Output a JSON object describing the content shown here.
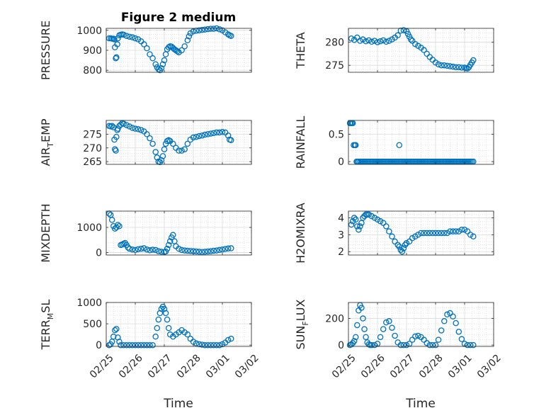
{
  "figure": {
    "title": "Figure 2 medium",
    "xlabel": "Time"
  },
  "chart_data": [
    {
      "type": "scatter",
      "ylabel": "PRESSURE",
      "ylabel_sub": "",
      "ylim": [
        790,
        1010
      ],
      "yticks": [
        800,
        900,
        1000
      ],
      "xlim": [
        0,
        5
      ],
      "xticks": [
        0,
        1,
        2,
        3,
        4,
        5
      ],
      "xticklabels": [],
      "grid": true,
      "x": [
        0.1,
        0.16,
        0.2,
        0.25,
        0.28,
        0.3,
        0.33,
        0.35,
        0.38,
        0.4,
        0.45,
        0.5,
        0.55,
        0.6,
        0.7,
        0.8,
        0.9,
        1.0,
        1.1,
        1.2,
        1.3,
        1.4,
        1.5,
        1.6,
        1.7,
        1.75,
        1.8,
        1.85,
        1.9,
        1.95,
        2.0,
        2.05,
        2.1,
        2.15,
        2.2,
        2.25,
        2.3,
        2.35,
        2.4,
        2.45,
        2.5,
        2.6,
        2.7,
        2.8,
        2.85,
        2.9,
        3.0,
        3.1,
        3.2,
        3.3,
        3.4,
        3.5,
        3.6,
        3.7,
        3.8,
        3.9,
        4.0,
        4.1,
        4.2,
        4.25,
        4.3
      ],
      "y": [
        960,
        960,
        958,
        958,
        955,
        915,
        860,
        865,
        930,
        960,
        975,
        978,
        980,
        978,
        972,
        968,
        965,
        960,
        955,
        945,
        930,
        910,
        880,
        860,
        830,
        815,
        805,
        800,
        810,
        830,
        850,
        880,
        905,
        915,
        920,
        918,
        912,
        905,
        900,
        895,
        890,
        900,
        920,
        950,
        970,
        985,
        995,
        998,
        1000,
        1002,
        1004,
        1006,
        1008,
        1008,
        1010,
        1005,
        1000,
        990,
        980,
        975,
        972
      ]
    },
    {
      "type": "scatter",
      "ylabel": "THETA",
      "ylabel_sub": "",
      "ylim": [
        273.5,
        283
      ],
      "yticks": [
        275,
        280
      ],
      "xlim": [
        0,
        5
      ],
      "xticks": [
        0,
        1,
        2,
        3,
        4,
        5
      ],
      "xticklabels": [],
      "grid": true,
      "x": [
        0.1,
        0.2,
        0.3,
        0.4,
        0.5,
        0.6,
        0.7,
        0.8,
        0.9,
        1.0,
        1.1,
        1.2,
        1.3,
        1.4,
        1.5,
        1.6,
        1.7,
        1.8,
        1.9,
        2.0,
        2.05,
        2.1,
        2.15,
        2.2,
        2.3,
        2.4,
        2.5,
        2.6,
        2.7,
        2.8,
        2.9,
        3.0,
        3.1,
        3.2,
        3.3,
        3.4,
        3.5,
        3.6,
        3.7,
        3.8,
        3.9,
        4.0,
        4.05,
        4.1,
        4.15,
        4.2,
        4.25,
        4.3
      ],
      "y": [
        280.8,
        280.5,
        281,
        280.3,
        280.6,
        280.2,
        280.4,
        280.1,
        280.3,
        280.0,
        280.2,
        280.4,
        280.1,
        280.3,
        280.6,
        281,
        281.5,
        282.5,
        282.6,
        282.4,
        281.8,
        281.2,
        280.6,
        280.3,
        279.6,
        279.2,
        278.8,
        278.3,
        277.5,
        276.8,
        276.2,
        275.6,
        275.2,
        275,
        275,
        274.9,
        274.8,
        274.7,
        274.6,
        274.6,
        274.5,
        274.5,
        274.4,
        274.3,
        274.6,
        275.1,
        275.6,
        276.1
      ]
    },
    {
      "type": "scatter",
      "ylabel": "AIR",
      "ylabel_sub": "T",
      "ylabel_after": "EMP",
      "ylim": [
        264,
        280
      ],
      "yticks": [
        265,
        270,
        275
      ],
      "xlim": [
        0,
        5
      ],
      "xticks": [
        0,
        1,
        2,
        3,
        4,
        5
      ],
      "xticklabels": [],
      "grid": true,
      "x": [
        0.1,
        0.15,
        0.2,
        0.25,
        0.28,
        0.3,
        0.33,
        0.35,
        0.38,
        0.4,
        0.45,
        0.5,
        0.55,
        0.6,
        0.7,
        0.8,
        0.9,
        1.0,
        1.1,
        1.2,
        1.3,
        1.4,
        1.5,
        1.6,
        1.7,
        1.75,
        1.8,
        1.85,
        1.9,
        1.95,
        2.0,
        2.05,
        2.1,
        2.15,
        2.2,
        2.3,
        2.4,
        2.5,
        2.6,
        2.7,
        2.8,
        2.9,
        3.0,
        3.1,
        3.2,
        3.3,
        3.4,
        3.5,
        3.6,
        3.7,
        3.8,
        3.9,
        4.0,
        4.1,
        4.2,
        4.25,
        4.3
      ],
      "y": [
        278,
        277.8,
        278,
        277.5,
        273,
        269.5,
        269,
        274,
        276.5,
        277,
        278,
        278.5,
        279,
        278.8,
        278.3,
        277.8,
        277.3,
        277,
        276.8,
        276.5,
        276,
        275,
        273.5,
        271.5,
        268.5,
        266.5,
        265,
        264.8,
        265.5,
        267,
        269.5,
        271.5,
        272.5,
        272.8,
        272.5,
        271.5,
        270,
        269,
        269,
        269.5,
        271.5,
        273,
        273.8,
        274,
        274.3,
        274.5,
        274.8,
        275,
        275.2,
        275.4,
        275.6,
        275.6,
        275.8,
        275.6,
        274.5,
        273,
        272.8
      ]
    },
    {
      "type": "scatter",
      "ylabel": "RAINFALL",
      "ylabel_sub": "",
      "ylim": [
        -0.05,
        0.75
      ],
      "yticks": [
        0,
        0.5
      ],
      "xlim": [
        0,
        5
      ],
      "xticks": [
        0,
        1,
        2,
        3,
        4,
        5
      ],
      "xticklabels": [],
      "grid": true,
      "x": [
        0.05,
        0.08,
        0.12,
        0.15,
        0.18,
        0.22,
        0.25,
        0.28,
        0.31,
        0.35,
        0.4,
        0.45,
        0.5,
        0.55,
        0.6,
        0.65,
        0.7,
        0.75,
        0.8,
        0.85,
        0.9,
        0.95,
        1.0,
        1.05,
        1.1,
        1.15,
        1.2,
        1.25,
        1.3,
        1.35,
        1.4,
        1.45,
        1.5,
        1.55,
        1.6,
        1.65,
        1.7,
        1.75,
        1.8,
        1.85,
        1.9,
        1.95,
        2.0,
        2.05,
        2.1,
        2.15,
        2.2,
        2.25,
        2.3,
        2.35,
        2.4,
        2.45,
        2.5,
        2.55,
        2.6,
        2.65,
        2.7,
        2.75,
        2.8,
        2.85,
        2.9,
        2.95,
        3.0,
        3.05,
        3.1,
        3.15,
        3.2,
        3.25,
        3.3,
        3.35,
        3.4,
        3.45,
        3.5,
        3.55,
        3.6,
        3.65,
        3.7,
        3.75,
        3.8,
        3.85,
        3.9,
        3.95,
        4.0,
        4.05,
        4.1,
        4.15,
        4.2,
        4.25,
        4.3,
        1.75
      ],
      "y": [
        0.7,
        0.7,
        0.7,
        0.7,
        0.3,
        0.3,
        0.3,
        0,
        0,
        0,
        0,
        0,
        0,
        0,
        0,
        0,
        0,
        0,
        0,
        0,
        0,
        0,
        0,
        0,
        0,
        0,
        0,
        0,
        0,
        0,
        0,
        0,
        0,
        0,
        0,
        0,
        0,
        0,
        0,
        0,
        0,
        0,
        0,
        0,
        0,
        0,
        0,
        0,
        0,
        0,
        0,
        0,
        0,
        0,
        0,
        0,
        0,
        0,
        0,
        0,
        0,
        0,
        0,
        0,
        0,
        0,
        0,
        0,
        0,
        0,
        0,
        0,
        0,
        0,
        0,
        0,
        0,
        0,
        0,
        0,
        0,
        0,
        0,
        0,
        0,
        0,
        0,
        0,
        0,
        0.3
      ]
    },
    {
      "type": "scatter",
      "ylabel": "MIXDEPTH",
      "ylabel_sub": "",
      "ylim": [
        -100,
        1650
      ],
      "yticks": [
        0,
        1000
      ],
      "xlim": [
        0,
        5
      ],
      "xticks": [
        0,
        1,
        2,
        3,
        4,
        5
      ],
      "xticklabels": [],
      "grid": true,
      "x": [
        0.1,
        0.15,
        0.2,
        0.25,
        0.3,
        0.35,
        0.4,
        0.45,
        0.5,
        0.55,
        0.6,
        0.65,
        0.7,
        0.75,
        0.8,
        0.9,
        1.0,
        1.1,
        1.2,
        1.3,
        1.4,
        1.5,
        1.6,
        1.7,
        1.8,
        1.9,
        2.0,
        2.05,
        2.1,
        2.15,
        2.2,
        2.25,
        2.3,
        2.35,
        2.4,
        2.5,
        2.6,
        2.7,
        2.8,
        2.9,
        3.0,
        3.1,
        3.2,
        3.3,
        3.4,
        3.5,
        3.6,
        3.7,
        3.8,
        3.9,
        4.0,
        4.1,
        4.2,
        4.3
      ],
      "y": [
        1550,
        1500,
        1300,
        1050,
        950,
        1000,
        1100,
        1050,
        300,
        320,
        350,
        380,
        300,
        200,
        150,
        120,
        100,
        130,
        150,
        170,
        120,
        90,
        110,
        100,
        50,
        30,
        20,
        40,
        150,
        300,
        450,
        600,
        700,
        450,
        250,
        150,
        100,
        80,
        70,
        60,
        50,
        40,
        30,
        20,
        30,
        40,
        50,
        70,
        80,
        100,
        120,
        140,
        160,
        170
      ]
    },
    {
      "type": "scatter",
      "ylabel": "H2OMIXRA",
      "ylabel_sub": "",
      "ylim": [
        1.8,
        4.4
      ],
      "yticks": [
        2,
        3,
        4
      ],
      "xlim": [
        0,
        5
      ],
      "xticks": [
        0,
        1,
        2,
        3,
        4,
        5
      ],
      "xticklabels": [],
      "grid": true,
      "x": [
        0.1,
        0.15,
        0.2,
        0.25,
        0.3,
        0.35,
        0.4,
        0.45,
        0.5,
        0.55,
        0.6,
        0.65,
        0.7,
        0.8,
        0.9,
        1.0,
        1.1,
        1.2,
        1.3,
        1.4,
        1.5,
        1.6,
        1.7,
        1.75,
        1.8,
        1.85,
        1.9,
        1.95,
        2.0,
        2.1,
        2.2,
        2.3,
        2.4,
        2.5,
        2.6,
        2.7,
        2.8,
        2.9,
        3.0,
        3.1,
        3.2,
        3.3,
        3.4,
        3.5,
        3.6,
        3.7,
        3.8,
        3.9,
        4.0,
        4.1,
        4.2,
        4.3
      ],
      "y": [
        3.6,
        3.8,
        4.0,
        3.9,
        3.5,
        3.3,
        3.5,
        3.7,
        4.0,
        4.1,
        4.2,
        4.2,
        4.2,
        4.1,
        4.0,
        3.9,
        3.8,
        3.7,
        3.5,
        3.2,
        2.9,
        2.6,
        2.4,
        2.3,
        2.1,
        2.0,
        2.2,
        2.4,
        2.5,
        2.6,
        2.8,
        2.9,
        3.0,
        3.1,
        3.1,
        3.1,
        3.1,
        3.1,
        3.1,
        3.1,
        3.1,
        3.1,
        3.1,
        3.2,
        3.2,
        3.2,
        3.2,
        3.3,
        3.3,
        3.2,
        3.0,
        2.9
      ]
    },
    {
      "type": "scatter",
      "ylabel": "TERR",
      "ylabel_sub": "M",
      "ylabel_after": "SL",
      "ylim": [
        -30,
        1000
      ],
      "yticks": [
        0,
        500,
        1000
      ],
      "xlim": [
        0,
        5
      ],
      "xticks": [
        0,
        1,
        2,
        3,
        4,
        5
      ],
      "xticklabels": [
        "02/25",
        "02/26",
        "02/27",
        "02/28",
        "03/01",
        "03/02"
      ],
      "grid": true,
      "x": [
        0.1,
        0.15,
        0.2,
        0.25,
        0.3,
        0.35,
        0.4,
        0.45,
        0.5,
        0.6,
        0.7,
        0.8,
        0.9,
        1.0,
        1.1,
        1.2,
        1.3,
        1.4,
        1.5,
        1.6,
        1.7,
        1.75,
        1.8,
        1.85,
        1.9,
        1.95,
        2.0,
        2.05,
        2.1,
        2.15,
        2.2,
        2.3,
        2.4,
        2.5,
        2.6,
        2.7,
        2.8,
        2.9,
        3.0,
        3.1,
        3.2,
        3.3,
        3.4,
        3.5,
        3.6,
        3.7,
        3.8,
        3.9,
        4.0,
        4.1,
        4.2,
        4.3
      ],
      "y": [
        0,
        20,
        80,
        200,
        350,
        380,
        180,
        80,
        0,
        0,
        0,
        0,
        0,
        0,
        0,
        0,
        0,
        0,
        0,
        0,
        200,
        400,
        600,
        750,
        850,
        900,
        850,
        750,
        600,
        400,
        250,
        200,
        250,
        300,
        350,
        300,
        250,
        150,
        80,
        40,
        20,
        10,
        0,
        0,
        0,
        0,
        0,
        0,
        20,
        60,
        120,
        150
      ]
    },
    {
      "type": "scatter",
      "ylabel": "SUN",
      "ylabel_sub": "F",
      "ylabel_after": "LUX",
      "ylim": [
        -10,
        320
      ],
      "yticks": [
        0,
        200
      ],
      "xlim": [
        0,
        5
      ],
      "xticks": [
        0,
        1,
        2,
        3,
        4,
        5
      ],
      "xticklabels": [
        "02/25",
        "02/26",
        "02/27",
        "02/28",
        "03/01",
        "03/02"
      ],
      "grid": true,
      "x": [
        0.05,
        0.1,
        0.15,
        0.2,
        0.25,
        0.3,
        0.35,
        0.4,
        0.45,
        0.5,
        0.55,
        0.6,
        0.65,
        0.7,
        0.75,
        0.8,
        0.9,
        1.0,
        1.1,
        1.2,
        1.3,
        1.4,
        1.5,
        1.6,
        1.7,
        1.8,
        1.9,
        2.0,
        2.1,
        2.2,
        2.3,
        2.4,
        2.5,
        2.6,
        2.7,
        2.8,
        2.9,
        3.0,
        3.1,
        3.2,
        3.3,
        3.4,
        3.5,
        3.6,
        3.7,
        3.8,
        3.9,
        4.0,
        4.1,
        4.2,
        4.3
      ],
      "y": [
        0,
        5,
        15,
        30,
        60,
        150,
        260,
        300,
        280,
        200,
        120,
        60,
        20,
        5,
        0,
        0,
        0,
        10,
        60,
        120,
        170,
        180,
        130,
        70,
        20,
        0,
        0,
        0,
        10,
        40,
        65,
        70,
        60,
        40,
        15,
        0,
        0,
        0,
        40,
        110,
        180,
        230,
        240,
        215,
        165,
        100,
        45,
        10,
        0,
        0,
        0
      ]
    }
  ]
}
